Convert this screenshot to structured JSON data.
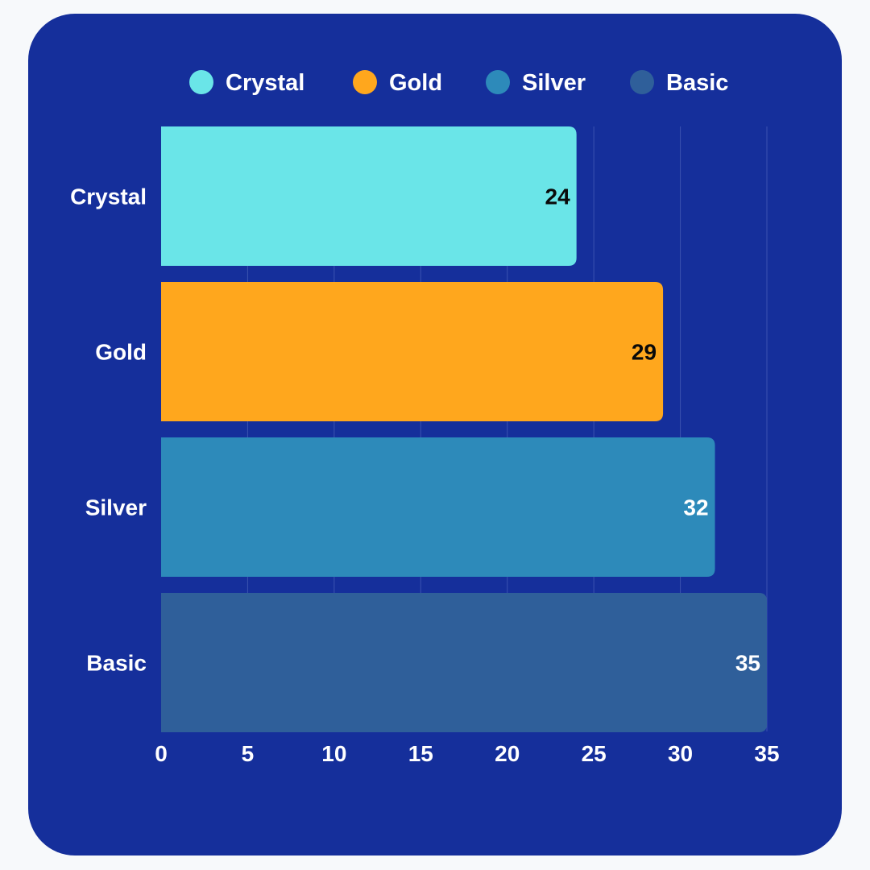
{
  "chart_data": {
    "type": "bar",
    "orientation": "horizontal",
    "title": "",
    "xlabel": "",
    "ylabel": "",
    "categories": [
      "Crystal",
      "Gold",
      "Silver",
      "Basic"
    ],
    "values": [
      24,
      29,
      32,
      35
    ],
    "xlim": [
      0,
      35
    ],
    "ticks": [
      "0",
      "5",
      "10",
      "15",
      "20",
      "25",
      "30",
      "35"
    ],
    "grid": true,
    "legend": {
      "placement": "top",
      "entries": [
        "Crystal",
        "Gold",
        "Silver",
        "Basic"
      ]
    },
    "colors": {
      "Crystal": "#6ae5e8",
      "Gold": "#ffa71d",
      "Silver": "#2d8aba",
      "Basic": "#2f5f9a"
    },
    "value_label_colors": {
      "Crystal": "#0a0a0a",
      "Gold": "#0a0a0a",
      "Silver": "#ffffff",
      "Basic": "#ffffff"
    }
  }
}
